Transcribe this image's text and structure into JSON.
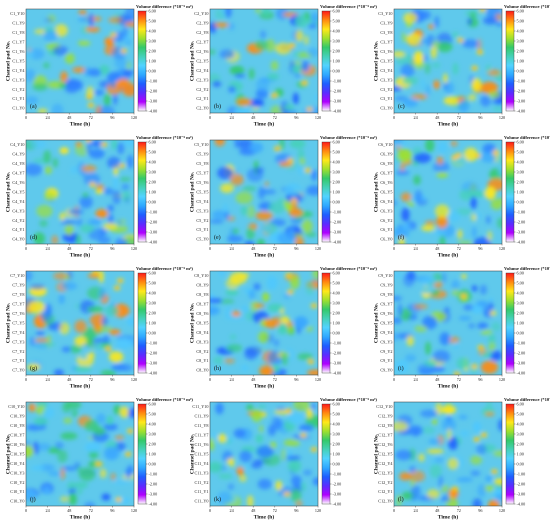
{
  "chart_data": [
    {
      "type": "heatmap",
      "label": "(a)",
      "channels": [
        "C1_Y10",
        "C1_Y9",
        "C1_Y8",
        "C1_Y7",
        "C1_Y6",
        "C1_Y5",
        "C1_Y4",
        "C1_Y3",
        "C1_Y2",
        "C1_Y1",
        "C1_Y0"
      ],
      "xticks": [
        "0",
        "24",
        "48",
        "72",
        "96",
        "120"
      ],
      "xlim": [
        0,
        120
      ],
      "xlabel": "Time (h)",
      "ylabel": "Channel pad No.",
      "colorbar_title": "Volume difference (*10⁻⁶ m³)",
      "colorbar_ticks": [
        "6.00",
        "5.00",
        "4.00",
        "3.00",
        "2.00",
        "1.00",
        "0.00",
        "-1.00",
        "-2.00",
        "-3.00",
        "-4.00"
      ],
      "zlim": [
        -4,
        6
      ]
    },
    {
      "type": "heatmap",
      "label": "(b)",
      "channels": [
        "C2_Y10",
        "C2_Y9",
        "C2_Y8",
        "C2_Y7",
        "C2_Y6",
        "C2_Y5",
        "C2_Y4",
        "C2_Y3",
        "C2_Y2",
        "C2_Y1",
        "C2_Y0"
      ],
      "xticks": [
        "0",
        "24",
        "48",
        "72",
        "96",
        "120"
      ],
      "xlim": [
        0,
        120
      ],
      "xlabel": "Time (h)",
      "ylabel": "Channel pad No.",
      "colorbar_title": "Volume difference (*10⁻⁶ m³)",
      "colorbar_ticks": [
        "6.00",
        "5.00",
        "4.00",
        "3.00",
        "2.00",
        "1.00",
        "0.00",
        "-1.00",
        "-2.00",
        "-3.00",
        "-4.00"
      ],
      "zlim": [
        -4,
        6
      ]
    },
    {
      "type": "heatmap",
      "label": "(c)",
      "channels": [
        "C3_Y10",
        "C3_Y9",
        "C3_Y8",
        "C3_Y7",
        "C3_Y6",
        "C3_Y5",
        "C3_Y4",
        "C3_Y3",
        "C3_Y2",
        "C3_Y1",
        "C3_Y0"
      ],
      "xticks": [
        "0",
        "24",
        "48",
        "72",
        "96",
        "120"
      ],
      "xlim": [
        0,
        120
      ],
      "xlabel": "Time (h)",
      "ylabel": "Channel pad No.",
      "colorbar_title": "Volume difference (*10⁻⁶ m³)",
      "colorbar_ticks": [
        "6.00",
        "5.00",
        "4.00",
        "3.00",
        "2.00",
        "1.00",
        "0.00",
        "-1.00",
        "-2.00",
        "-3.00",
        "-4.00"
      ],
      "zlim": [
        -4,
        6
      ]
    },
    {
      "type": "heatmap",
      "label": "(d)",
      "channels": [
        "C4_Y10",
        "C4_Y9",
        "C4_Y8",
        "C4_Y7",
        "C4_Y6",
        "C4_Y5",
        "C4_Y4",
        "C4_Y3",
        "C4_Y2",
        "C4_Y1",
        "C4_Y0"
      ],
      "xticks": [
        "0",
        "24",
        "48",
        "72",
        "96",
        "120"
      ],
      "xlim": [
        0,
        120
      ],
      "xlabel": "Time (h)",
      "ylabel": "Channel pad No.",
      "colorbar_title": "Volume difference (*10⁻⁶ m³)",
      "colorbar_ticks": [
        "6.00",
        "5.00",
        "4.00",
        "3.00",
        "2.00",
        "1.00",
        "0.00",
        "-1.00",
        "-2.00",
        "-3.00",
        "-4.00"
      ],
      "zlim": [
        -4,
        6
      ]
    },
    {
      "type": "heatmap",
      "label": "(e)",
      "channels": [
        "C5_Y10",
        "C5_Y9",
        "C5_Y8",
        "C5_Y7",
        "C5_Y6",
        "C5_Y5",
        "C5_Y4",
        "C5_Y3",
        "C5_Y2",
        "C5_Y1",
        "C5_Y0"
      ],
      "xticks": [
        "0",
        "24",
        "48",
        "72",
        "96",
        "120"
      ],
      "xlim": [
        0,
        120
      ],
      "xlabel": "Time (h)",
      "ylabel": "Channel pad No.",
      "colorbar_title": "Volume difference (*10⁻⁶ m³)",
      "colorbar_ticks": [
        "6.00",
        "5.00",
        "4.00",
        "3.00",
        "2.00",
        "1.00",
        "0.00",
        "-1.00",
        "-2.00",
        "-3.00",
        "-4.00"
      ],
      "zlim": [
        -4,
        6
      ]
    },
    {
      "type": "heatmap",
      "label": "(f)",
      "channels": [
        "C6_Y10",
        "C6_Y9",
        "C6_Y8",
        "C6_Y7",
        "C6_Y6",
        "C6_Y5",
        "C6_Y4",
        "C6_Y3",
        "C6_Y2",
        "C6_Y1",
        "C6_Y0"
      ],
      "xticks": [
        "0",
        "24",
        "48",
        "72",
        "96",
        "120"
      ],
      "xlim": [
        0,
        120
      ],
      "xlabel": "Time (h)",
      "ylabel": "Channel pad No.",
      "colorbar_title": "Volume difference (*10⁻⁶ m³)",
      "colorbar_ticks": [
        "6.00",
        "5.00",
        "4.00",
        "3.00",
        "2.00",
        "1.00",
        "0.00",
        "-1.00",
        "-2.00",
        "-3.00",
        "-4.00"
      ],
      "zlim": [
        -4,
        6
      ]
    },
    {
      "type": "heatmap",
      "label": "(g)",
      "channels": [
        "C7_Y10",
        "C7_Y9",
        "C7_Y8",
        "C7_Y7",
        "C7_Y6",
        "C7_Y5",
        "C7_Y4",
        "C7_Y3",
        "C7_Y2",
        "C7_Y1",
        "C7_Y0"
      ],
      "xticks": [
        "0",
        "24",
        "48",
        "72",
        "96",
        "120"
      ],
      "xlim": [
        0,
        120
      ],
      "xlabel": "Time (h)",
      "ylabel": "Channel pad No.",
      "colorbar_title": "Volume difference (*10⁻⁶ m³)",
      "colorbar_ticks": [
        "6.00",
        "5.00",
        "4.00",
        "3.00",
        "2.00",
        "1.00",
        "0.00",
        "-1.00",
        "-2.00",
        "-3.00",
        "-4.00"
      ],
      "zlim": [
        -4,
        6
      ]
    },
    {
      "type": "heatmap",
      "label": "(h)",
      "channels": [
        "C8_Y10",
        "C8_Y9",
        "C8_Y8",
        "C8_Y7",
        "C8_Y6",
        "C8_Y5",
        "C8_Y4",
        "C8_Y3",
        "C8_Y2",
        "C8_Y1",
        "C8_Y0"
      ],
      "xticks": [
        "0",
        "24",
        "48",
        "72",
        "96",
        "120"
      ],
      "xlim": [
        0,
        120
      ],
      "xlabel": "Time (h)",
      "ylabel": "Channel pad No.",
      "colorbar_title": "Volume difference (*10⁻⁶ m³)",
      "colorbar_ticks": [
        "6.00",
        "5.00",
        "4.00",
        "3.00",
        "2.00",
        "1.00",
        "0.00",
        "-1.00",
        "-2.00",
        "-3.00",
        "-4.00"
      ],
      "zlim": [
        -4,
        6
      ]
    },
    {
      "type": "heatmap",
      "label": "(i)",
      "channels": [
        "C9_Y10",
        "C9_Y9",
        "C9_Y8",
        "C9_Y7",
        "C9_Y6",
        "C9_Y5",
        "C9_Y4",
        "C9_Y3",
        "C9_Y2",
        "C9_Y1",
        "C9_Y0"
      ],
      "xticks": [
        "0",
        "24",
        "48",
        "72",
        "96",
        "120"
      ],
      "xlim": [
        0,
        120
      ],
      "xlabel": "Time (h)",
      "ylabel": "Channel pad No.",
      "colorbar_title": "Volume difference (*10⁻⁶ m³)",
      "colorbar_ticks": [
        "6.00",
        "5.00",
        "4.00",
        "3.00",
        "2.00",
        "1.00",
        "0.00",
        "-1.00",
        "-2.00",
        "-3.00",
        "-4.00"
      ],
      "zlim": [
        -4,
        6
      ]
    },
    {
      "type": "heatmap",
      "label": "(j)",
      "channels": [
        "C10_Y10",
        "C10_Y9",
        "C10_Y8",
        "C10_Y7",
        "C10_Y6",
        "C10_Y5",
        "C10_Y4",
        "C10_Y3",
        "C10_Y2",
        "C10_Y1",
        "C10_Y0"
      ],
      "xticks": [
        "0",
        "24",
        "48",
        "72",
        "96",
        "120"
      ],
      "xlim": [
        0,
        120
      ],
      "xlabel": "Time (h)",
      "ylabel": "Channel pad No.",
      "colorbar_title": "Volume difference (*10⁻⁶ m³)",
      "colorbar_ticks": [
        "6.00",
        "5.00",
        "4.00",
        "3.00",
        "2.00",
        "1.00",
        "0.00",
        "-1.00",
        "-2.00",
        "-3.00",
        "-4.00"
      ],
      "zlim": [
        -4,
        6
      ]
    },
    {
      "type": "heatmap",
      "label": "(k)",
      "channels": [
        "C11_Y10",
        "C11_Y9",
        "C11_Y8",
        "C11_Y7",
        "C11_Y6",
        "C11_Y5",
        "C11_Y4",
        "C11_Y3",
        "C11_Y2",
        "C11_Y1",
        "C11_Y0"
      ],
      "xticks": [
        "0",
        "24",
        "48",
        "72",
        "96",
        "120"
      ],
      "xlim": [
        0,
        120
      ],
      "xlabel": "Time (h)",
      "ylabel": "Channel pad No.",
      "colorbar_title": "Volume difference (*10⁻⁶ m³)",
      "colorbar_ticks": [
        "6.00",
        "5.00",
        "4.00",
        "3.00",
        "2.00",
        "1.00",
        "0.00",
        "-1.00",
        "-2.00",
        "-3.00",
        "-4.00"
      ],
      "zlim": [
        -4,
        6
      ]
    },
    {
      "type": "heatmap",
      "label": "(l)",
      "channels": [
        "C12_Y10",
        "C12_Y9",
        "C12_Y8",
        "C12_Y7",
        "C12_Y6",
        "C12_Y5",
        "C12_Y4",
        "C12_Y3",
        "C12_Y2",
        "C12_Y1",
        "C12_Y0"
      ],
      "xticks": [
        "0",
        "24",
        "48",
        "72",
        "96",
        "120"
      ],
      "xlim": [
        0,
        120
      ],
      "xlabel": "Time (h)",
      "ylabel": "Channel pad No.",
      "colorbar_title": "Volume difference (*10⁻⁶ m³)",
      "colorbar_ticks": [
        "6.00",
        "5.00",
        "4.00",
        "3.00",
        "2.00",
        "1.00",
        "0.00",
        "-1.00",
        "-2.00",
        "-3.00",
        "-4.00"
      ],
      "zlim": [
        -4,
        6
      ]
    }
  ],
  "colors": {
    "colormap": [
      "#ffffff",
      "#b000ff",
      "#5a2dff",
      "#1f5fff",
      "#2fa9ff",
      "#52d3ff",
      "#45d1b8",
      "#34c96a",
      "#9fe02e",
      "#ffe81a",
      "#ff8a10",
      "#ff1a1a"
    ],
    "background_field": "#5fc9ec"
  }
}
